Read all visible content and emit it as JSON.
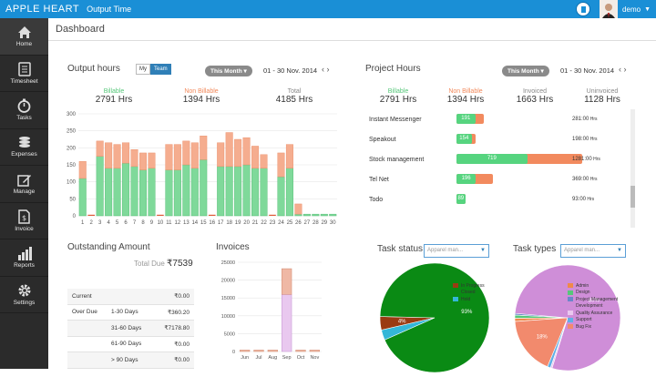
{
  "topbar": {
    "brand": "APPLE HEART",
    "subtitle": "Output Time",
    "username": "demo"
  },
  "sidebar": {
    "items": [
      {
        "label": "Home",
        "icon": "home-icon"
      },
      {
        "label": "Timesheet",
        "icon": "timesheet-icon"
      },
      {
        "label": "Tasks",
        "icon": "stopwatch-icon"
      },
      {
        "label": "Expenses",
        "icon": "coins-icon"
      },
      {
        "label": "Manage",
        "icon": "edit-icon"
      },
      {
        "label": "Invoice",
        "icon": "invoice-icon"
      },
      {
        "label": "Reports",
        "icon": "bar-chart-icon"
      },
      {
        "label": "Settings",
        "icon": "gear-icon"
      }
    ]
  },
  "page": {
    "title": "Dashboard"
  },
  "output_hours": {
    "title": "Output hours",
    "toggle": [
      "My",
      "Team"
    ],
    "period": "This Month",
    "date_range": "01 - 30 Nov. 2014",
    "stats": [
      {
        "label": "Billable",
        "value": "2791 Hrs",
        "color": "#56c77a"
      },
      {
        "label": "Non Billable",
        "value": "1394 Hrs",
        "color": "#f2895b"
      },
      {
        "label": "Total",
        "value": "4185 Hrs",
        "color": "#888888"
      }
    ]
  },
  "project_hours": {
    "title": "Project Hours",
    "period": "This Month",
    "date_range": "01 - 30 Nov. 2014",
    "stats": [
      {
        "label": "Billable",
        "value": "2791 Hrs",
        "color": "#56c77a"
      },
      {
        "label": "Non Billable",
        "value": "1394 Hrs",
        "color": "#f2895b"
      },
      {
        "label": "Invoiced",
        "value": "1663 Hrs",
        "color": "#888888"
      },
      {
        "label": "Uninvoiced",
        "value": "1128 Hrs",
        "color": "#888888"
      }
    ],
    "projects": [
      {
        "name": "Instant Messenger",
        "billable": 191,
        "label": "191",
        "total": 281,
        "hours": "281:00",
        "unit": "Hrs"
      },
      {
        "name": "Speakout",
        "billable": 154,
        "label": "154",
        "total": 198,
        "hours": "198:00",
        "unit": "Hrs"
      },
      {
        "name": "Stock management",
        "billable": 719,
        "label": "719",
        "total": 1281,
        "hours": "1281:00",
        "unit": "Hrs"
      },
      {
        "name": "Tel Net",
        "billable": 196,
        "label": "196",
        "total": 369,
        "hours": "369:00",
        "unit": "Hrs"
      },
      {
        "name": "Todo",
        "billable": 89,
        "label": "89",
        "total": 93,
        "hours": "93:00",
        "unit": "Hrs"
      }
    ]
  },
  "outstanding": {
    "title": "Outstanding Amount",
    "total_label": "Total Due",
    "total_value": "₹7539",
    "rows": [
      {
        "c1": "Current",
        "c2": "",
        "c3": "₹0.00"
      },
      {
        "c1": "Over Due",
        "c2": "1-30 Days",
        "c3": "₹360.20"
      },
      {
        "c1": "",
        "c2": "31-60 Days",
        "c3": "₹7178.80"
      },
      {
        "c1": "",
        "c2": "61-90 Days",
        "c3": "₹0.00"
      },
      {
        "c1": "",
        "c2": "> 90 Days",
        "c3": "₹0.00"
      }
    ]
  },
  "invoices_title": "Invoices",
  "task_status": {
    "title": "Task status",
    "dropdown": "Apparel man..."
  },
  "task_types": {
    "title": "Task types",
    "dropdown": "Apparel man..."
  },
  "chart_data": [
    {
      "type": "bar",
      "stacked": true,
      "categories": [
        "1",
        "2",
        "3",
        "4",
        "5",
        "6",
        "7",
        "8",
        "9",
        "10",
        "11",
        "12",
        "13",
        "14",
        "15",
        "16",
        "17",
        "18",
        "19",
        "20",
        "21",
        "22",
        "23",
        "24",
        "25",
        "26",
        "27",
        "28",
        "29",
        "30"
      ],
      "series": [
        {
          "name": "Billable",
          "color": "#7fd99a",
          "values": [
            110,
            0,
            175,
            140,
            140,
            155,
            145,
            135,
            140,
            0,
            135,
            135,
            150,
            140,
            165,
            0,
            145,
            145,
            145,
            150,
            140,
            140,
            0,
            115,
            140,
            5,
            5,
            5,
            5,
            5
          ]
        },
        {
          "name": "Non Billable",
          "color": "#f5ad8f",
          "values": [
            50,
            0,
            45,
            75,
            70,
            60,
            50,
            50,
            45,
            0,
            75,
            75,
            70,
            75,
            70,
            0,
            70,
            100,
            80,
            80,
            65,
            40,
            0,
            70,
            70,
            30,
            0,
            0,
            0,
            0
          ]
        }
      ],
      "ylim": [
        0,
        300
      ],
      "yticks": [
        0,
        50,
        100,
        150,
        200,
        250,
        300
      ],
      "xlabel": "",
      "ylabel": ""
    },
    {
      "type": "bar",
      "stacked": true,
      "categories": [
        "Jun",
        "Jul",
        "Aug",
        "Sep",
        "Oct",
        "Nov"
      ],
      "series": [
        {
          "name": "",
          "color": "#e9c8ef",
          "values": [
            0,
            0,
            0,
            16000,
            0,
            0
          ]
        },
        {
          "name": "",
          "color": "#efb8a5",
          "values": [
            400,
            400,
            400,
            7200,
            400,
            400
          ]
        }
      ],
      "ylim": [
        0,
        25000
      ],
      "yticks": [
        0,
        5000,
        10000,
        15000,
        20000,
        25000
      ]
    },
    {
      "type": "pie",
      "title": "Task status",
      "slices": [
        {
          "name": "In Progress",
          "value": 4,
          "label": "4%",
          "color": "#9a3b12"
        },
        {
          "name": "Closed",
          "value": 93,
          "label": "93%",
          "color": "#0a8a14"
        },
        {
          "name": "Hold",
          "value": 3,
          "label": "",
          "color": "#34b7d8"
        }
      ]
    },
    {
      "type": "pie",
      "title": "Task types",
      "slices": [
        {
          "name": "Admin",
          "value": 1,
          "label": "",
          "color": "#f0894a"
        },
        {
          "name": "Design",
          "value": 1,
          "label": "",
          "color": "#56c77a"
        },
        {
          "name": "Project Management",
          "value": 0.5,
          "label": "",
          "color": "#6c86c9"
        },
        {
          "name": "Development",
          "value": 80,
          "label": "80%",
          "color": "#cf8ed8"
        },
        {
          "name": "Quality Assurance",
          "value": 0.5,
          "label": "",
          "color": "#e9c8ef"
        },
        {
          "name": "Support",
          "value": 1,
          "label": "",
          "color": "#5fb0e6"
        },
        {
          "name": "Bug Fix",
          "value": 18,
          "label": "18%",
          "color": "#f28a6d"
        }
      ]
    }
  ]
}
